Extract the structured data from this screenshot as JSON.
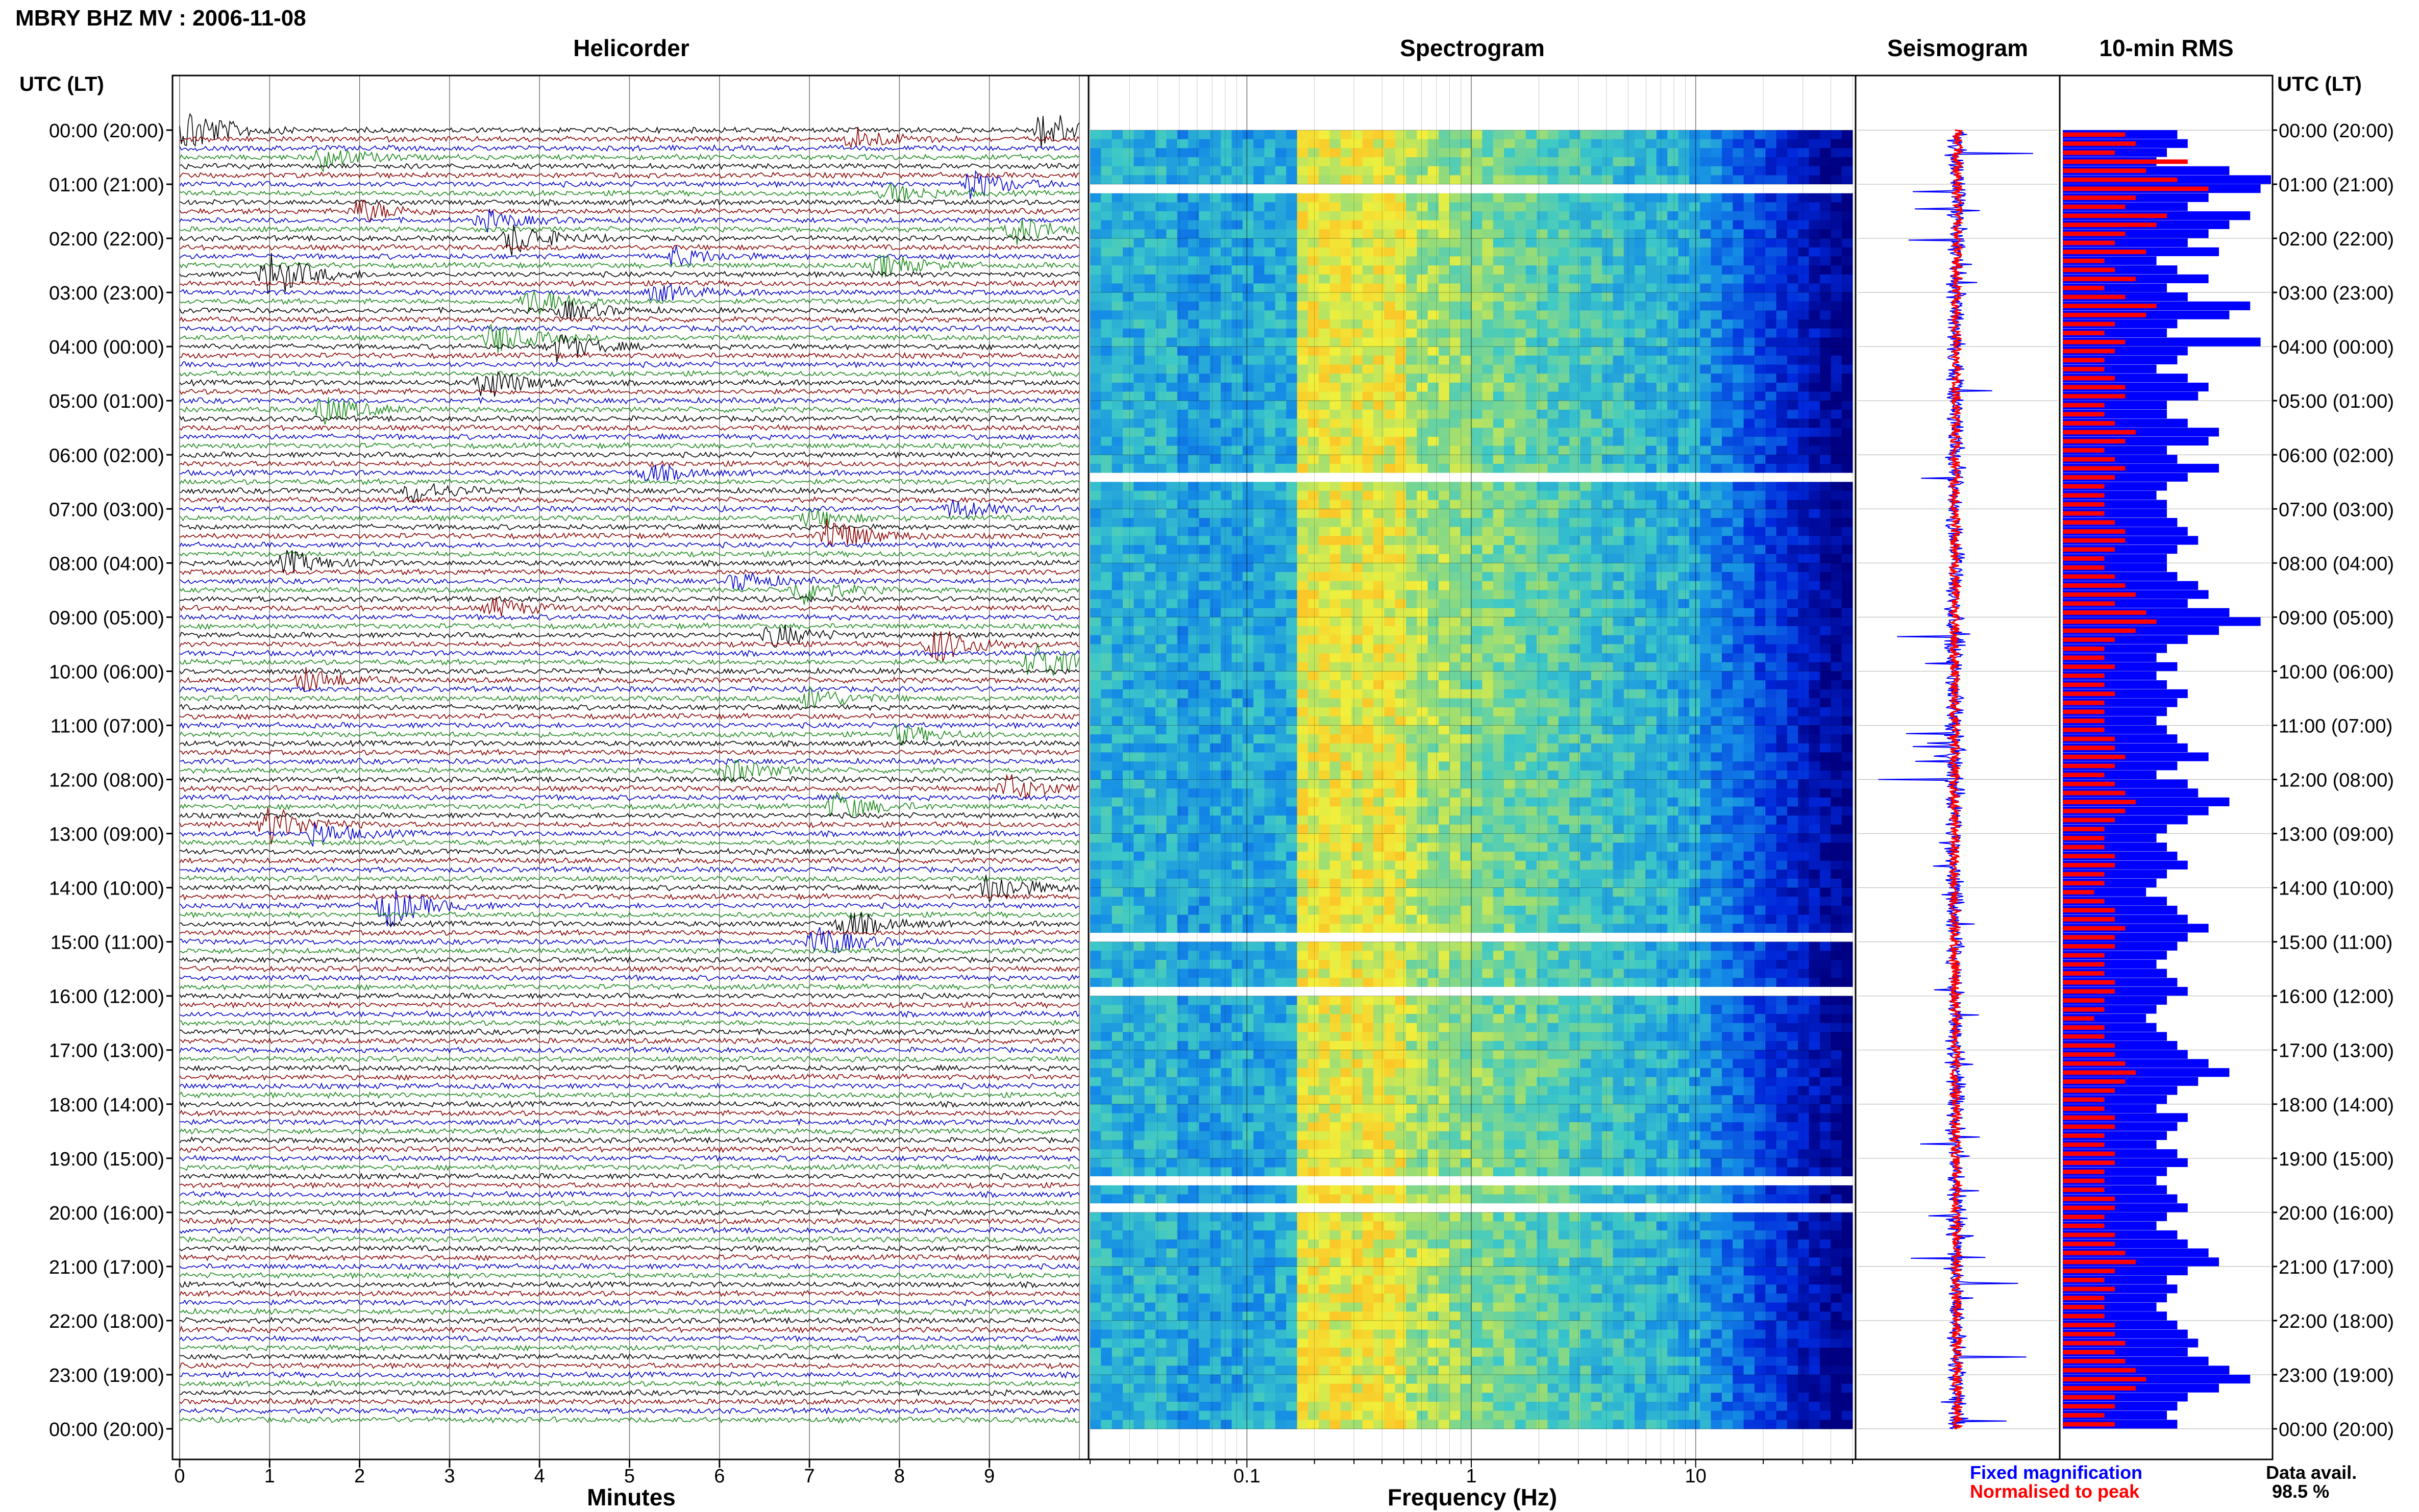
{
  "header": {
    "station_title": "MBRY BHZ MV : 2006-11-08",
    "utc_label": "UTC (LT)"
  },
  "panels": {
    "helicorder": "Helicorder",
    "spectrogram": "Spectrogram",
    "seismogram": "Seismogram",
    "rms": "10-min RMS"
  },
  "footer": {
    "minutes_label": "Minutes",
    "frequency_label": "Frequency (Hz)",
    "legend_fixed": "Fixed magnification",
    "legend_normalised": "Normalised to peak",
    "data_avail_label": "Data avail.",
    "data_avail_value": "98.5 %"
  },
  "colors": {
    "trace_cycle": [
      "#000000",
      "#8b0000",
      "#0000cc",
      "#1a8a1a"
    ],
    "rms_fixed": "#0000ff",
    "rms_normalised": "#ff0000",
    "seis_trace": "#0000ff",
    "seis_envelope": "#ff0000"
  },
  "chart_data": [
    {
      "type": "heatmap",
      "title": "Helicorder",
      "xlabel": "Minutes",
      "x_ticks": [
        "0",
        "1",
        "2",
        "3",
        "4",
        "5",
        "6",
        "7",
        "8",
        "9"
      ],
      "xlim": [
        0,
        10
      ],
      "y_ticks": [
        "00:00 (20:00)",
        "01:00 (21:00)",
        "02:00 (22:00)",
        "03:00 (23:00)",
        "04:00 (00:00)",
        "05:00 (01:00)",
        "06:00 (02:00)",
        "07:00 (03:00)",
        "08:00 (04:00)",
        "09:00 (05:00)",
        "10:00 (06:00)",
        "11:00 (07:00)",
        "12:00 (08:00)",
        "13:00 (09:00)",
        "14:00 (10:00)",
        "15:00 (11:00)",
        "16:00 (12:00)",
        "17:00 (13:00)",
        "18:00 (14:00)",
        "19:00 (15:00)",
        "20:00 (16:00)",
        "21:00 (17:00)",
        "22:00 (18:00)",
        "23:00 (19:00)",
        "00:00 (20:00)"
      ],
      "rows_per_hour": 6,
      "events": [
        {
          "row": 0,
          "minute": 0.1,
          "amp": 1.0
        },
        {
          "row": 0,
          "minute": 9.6,
          "amp": 0.9
        },
        {
          "row": 1,
          "minute": 7.5,
          "amp": 0.5
        },
        {
          "row": 3,
          "minute": 1.6,
          "amp": 0.5
        },
        {
          "row": 6,
          "minute": 8.8,
          "amp": 0.6
        },
        {
          "row": 7,
          "minute": 7.9,
          "amp": 0.4
        },
        {
          "row": 9,
          "minute": 2.0,
          "amp": 0.5
        },
        {
          "row": 10,
          "minute": 3.4,
          "amp": 0.4
        },
        {
          "row": 11,
          "minute": 9.3,
          "amp": 0.6
        },
        {
          "row": 12,
          "minute": 3.7,
          "amp": 0.7
        },
        {
          "row": 14,
          "minute": 5.5,
          "amp": 0.4
        },
        {
          "row": 15,
          "minute": 7.8,
          "amp": 0.5
        },
        {
          "row": 16,
          "minute": 1.0,
          "amp": 1.0
        },
        {
          "row": 18,
          "minute": 5.3,
          "amp": 0.4
        },
        {
          "row": 19,
          "minute": 3.9,
          "amp": 0.6
        },
        {
          "row": 20,
          "minute": 4.3,
          "amp": 0.4
        },
        {
          "row": 23,
          "minute": 3.5,
          "amp": 0.7
        },
        {
          "row": 24,
          "minute": 4.2,
          "amp": 0.6
        },
        {
          "row": 28,
          "minute": 3.4,
          "amp": 0.7
        },
        {
          "row": 31,
          "minute": 1.6,
          "amp": 0.6
        },
        {
          "row": 38,
          "minute": 5.2,
          "amp": 0.4
        },
        {
          "row": 40,
          "minute": 2.6,
          "amp": 0.5
        },
        {
          "row": 42,
          "minute": 8.6,
          "amp": 0.4
        },
        {
          "row": 43,
          "minute": 7.0,
          "amp": 0.4
        },
        {
          "row": 45,
          "minute": 7.2,
          "amp": 0.8
        },
        {
          "row": 48,
          "minute": 1.2,
          "amp": 0.5
        },
        {
          "row": 50,
          "minute": 6.2,
          "amp": 0.4
        },
        {
          "row": 51,
          "minute": 6.9,
          "amp": 0.6
        },
        {
          "row": 53,
          "minute": 3.5,
          "amp": 0.4
        },
        {
          "row": 56,
          "minute": 6.6,
          "amp": 0.5
        },
        {
          "row": 57,
          "minute": 8.4,
          "amp": 0.8
        },
        {
          "row": 59,
          "minute": 9.5,
          "amp": 0.9
        },
        {
          "row": 61,
          "minute": 1.4,
          "amp": 0.5
        },
        {
          "row": 63,
          "minute": 7.0,
          "amp": 0.5
        },
        {
          "row": 67,
          "minute": 8.0,
          "amp": 0.4
        },
        {
          "row": 71,
          "minute": 6.1,
          "amp": 0.5
        },
        {
          "row": 73,
          "minute": 9.2,
          "amp": 0.6
        },
        {
          "row": 75,
          "minute": 7.3,
          "amp": 0.6
        },
        {
          "row": 77,
          "minute": 1.0,
          "amp": 0.8
        },
        {
          "row": 78,
          "minute": 1.5,
          "amp": 0.5
        },
        {
          "row": 84,
          "minute": 9.0,
          "amp": 0.7
        },
        {
          "row": 86,
          "minute": 2.3,
          "amp": 0.9
        },
        {
          "row": 88,
          "minute": 7.4,
          "amp": 0.6
        },
        {
          "row": 90,
          "minute": 7.1,
          "amp": 0.7
        }
      ]
    },
    {
      "type": "heatmap",
      "title": "Spectrogram",
      "xlabel": "Frequency (Hz)",
      "x_scale": "log",
      "x_ticks": [
        "0.1",
        "1",
        "10"
      ],
      "xlim": [
        0.02,
        50
      ],
      "peak_band_hz": [
        0.2,
        0.5
      ],
      "gap_hours": [
        0.95,
        6.3,
        14.8,
        15.8,
        19.4,
        19.8
      ]
    },
    {
      "type": "line",
      "title": "Seismogram",
      "series": [
        {
          "name": "Fixed magnification",
          "color": "#0000ff"
        },
        {
          "name": "Normalised to peak",
          "color": "#ff0000"
        }
      ]
    },
    {
      "type": "bar",
      "title": "10-min RMS",
      "orientation": "horizontal",
      "bin_minutes": 10,
      "series": [
        {
          "name": "Fixed magnification",
          "values": [
            0.55,
            0.6,
            0.5,
            0.45,
            0.8,
            1.0,
            0.95,
            0.7,
            0.6,
            0.9,
            0.8,
            0.7,
            0.6,
            0.75,
            0.45,
            0.55,
            0.7,
            0.5,
            0.6,
            0.9,
            0.8,
            0.55,
            0.5,
            0.95,
            0.6,
            0.55,
            0.45,
            0.6,
            0.7,
            0.65,
            0.5,
            0.5,
            0.6,
            0.75,
            0.7,
            0.5,
            0.55,
            0.75,
            0.6,
            0.5,
            0.45,
            0.5,
            0.5,
            0.55,
            0.6,
            0.65,
            0.55,
            0.5,
            0.5,
            0.55,
            0.65,
            0.7,
            0.6,
            0.8,
            0.95,
            0.75,
            0.6,
            0.5,
            0.45,
            0.55,
            0.45,
            0.5,
            0.6,
            0.55,
            0.5,
            0.45,
            0.5,
            0.55,
            0.6,
            0.7,
            0.55,
            0.45,
            0.6,
            0.65,
            0.8,
            0.7,
            0.6,
            0.5,
            0.45,
            0.5,
            0.55,
            0.6,
            0.5,
            0.45,
            0.4,
            0.5,
            0.55,
            0.6,
            0.7,
            0.6,
            0.55,
            0.5,
            0.45,
            0.5,
            0.55,
            0.6,
            0.5,
            0.45,
            0.4,
            0.45,
            0.5,
            0.55,
            0.6,
            0.7,
            0.8,
            0.65,
            0.55,
            0.5,
            0.45,
            0.6,
            0.55,
            0.5,
            0.45,
            0.55,
            0.6,
            0.5,
            0.45,
            0.5,
            0.55,
            0.6,
            0.5,
            0.45,
            0.55,
            0.6,
            0.7,
            0.75,
            0.6,
            0.5,
            0.55,
            0.5,
            0.45,
            0.5,
            0.55,
            0.6,
            0.65,
            0.6,
            0.7,
            0.8,
            0.9,
            0.75,
            0.6,
            0.55,
            0.5,
            0.55
          ],
          "color": "#0000ff"
        },
        {
          "name": "Normalised to peak",
          "values": [
            0.3,
            0.35,
            0.25,
            0.6,
            0.4,
            0.55,
            0.7,
            0.35,
            0.3,
            0.5,
            0.45,
            0.3,
            0.25,
            0.4,
            0.2,
            0.25,
            0.35,
            0.2,
            0.3,
            0.45,
            0.4,
            0.25,
            0.2,
            0.3,
            0.25,
            0.2,
            0.2,
            0.25,
            0.3,
            0.3,
            0.2,
            0.2,
            0.25,
            0.35,
            0.3,
            0.2,
            0.25,
            0.3,
            0.25,
            0.2,
            0.2,
            0.2,
            0.2,
            0.25,
            0.3,
            0.3,
            0.25,
            0.2,
            0.2,
            0.25,
            0.3,
            0.35,
            0.25,
            0.4,
            0.45,
            0.35,
            0.25,
            0.2,
            0.2,
            0.25,
            0.2,
            0.2,
            0.25,
            0.2,
            0.2,
            0.2,
            0.2,
            0.25,
            0.25,
            0.3,
            0.25,
            0.2,
            0.25,
            0.3,
            0.35,
            0.3,
            0.25,
            0.2,
            0.2,
            0.2,
            0.25,
            0.25,
            0.2,
            0.2,
            0.15,
            0.2,
            0.25,
            0.25,
            0.3,
            0.25,
            0.25,
            0.2,
            0.2,
            0.2,
            0.25,
            0.25,
            0.2,
            0.2,
            0.15,
            0.2,
            0.2,
            0.25,
            0.25,
            0.3,
            0.35,
            0.3,
            0.25,
            0.2,
            0.2,
            0.25,
            0.25,
            0.2,
            0.2,
            0.25,
            0.25,
            0.2,
            0.2,
            0.2,
            0.25,
            0.25,
            0.2,
            0.2,
            0.25,
            0.25,
            0.3,
            0.35,
            0.25,
            0.2,
            0.25,
            0.2,
            0.2,
            0.2,
            0.25,
            0.25,
            0.3,
            0.25,
            0.3,
            0.35,
            0.4,
            0.35,
            0.25,
            0.25,
            0.2,
            0.25
          ],
          "color": "#ff0000"
        }
      ]
    }
  ]
}
